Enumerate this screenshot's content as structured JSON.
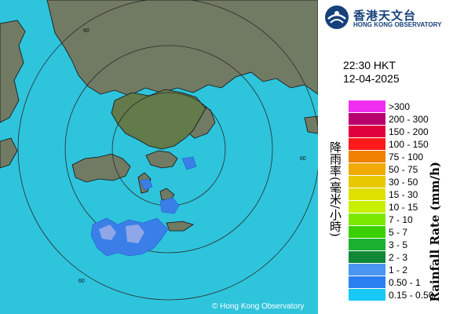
{
  "logo": {
    "name_cn": "香港天文台",
    "name_en": "HONG KONG OBSERVATORY"
  },
  "timestamp": {
    "time": "22:30 HKT",
    "date": "12-04-2025"
  },
  "legend": {
    "title_cn": "降雨率(毫米/小時)",
    "title_en": "Rainfall Rate (mm/h)",
    "items": [
      {
        "label": ">300",
        "color": "#f02ef0"
      },
      {
        "label": "200 - 300",
        "color": "#b8006e"
      },
      {
        "label": "150 - 200",
        "color": "#e0003c"
      },
      {
        "label": "100 - 150",
        "color": "#ff1a1a"
      },
      {
        "label": "75 - 100",
        "color": "#f08000"
      },
      {
        "label": "50 - 75",
        "color": "#f0aa00"
      },
      {
        "label": "30 - 50",
        "color": "#e8c800"
      },
      {
        "label": "15 - 30",
        "color": "#e0e000"
      },
      {
        "label": "10 - 15",
        "color": "#c8f000"
      },
      {
        "label": "7 - 10",
        "color": "#7ae800"
      },
      {
        "label": "5 - 7",
        "color": "#3ad000"
      },
      {
        "label": "3 - 5",
        "color": "#1ab030"
      },
      {
        "label": "2 - 3",
        "color": "#108838"
      },
      {
        "label": "1 - 2",
        "color": "#4a96f0"
      },
      {
        "label": "0.50 - 1",
        "color": "#2a80f0"
      },
      {
        "label": "0.15 - 0.50",
        "color": "#18c8f8"
      }
    ]
  },
  "map": {
    "range_labels": [
      "60",
      "60",
      "60"
    ],
    "copyright": "© Hong Kong Observatory",
    "colors": {
      "sea": "#2ec4dc",
      "land": "#707a62",
      "rain_light": "#3a7fe8",
      "rain_medium": "#8fa6e8"
    }
  }
}
